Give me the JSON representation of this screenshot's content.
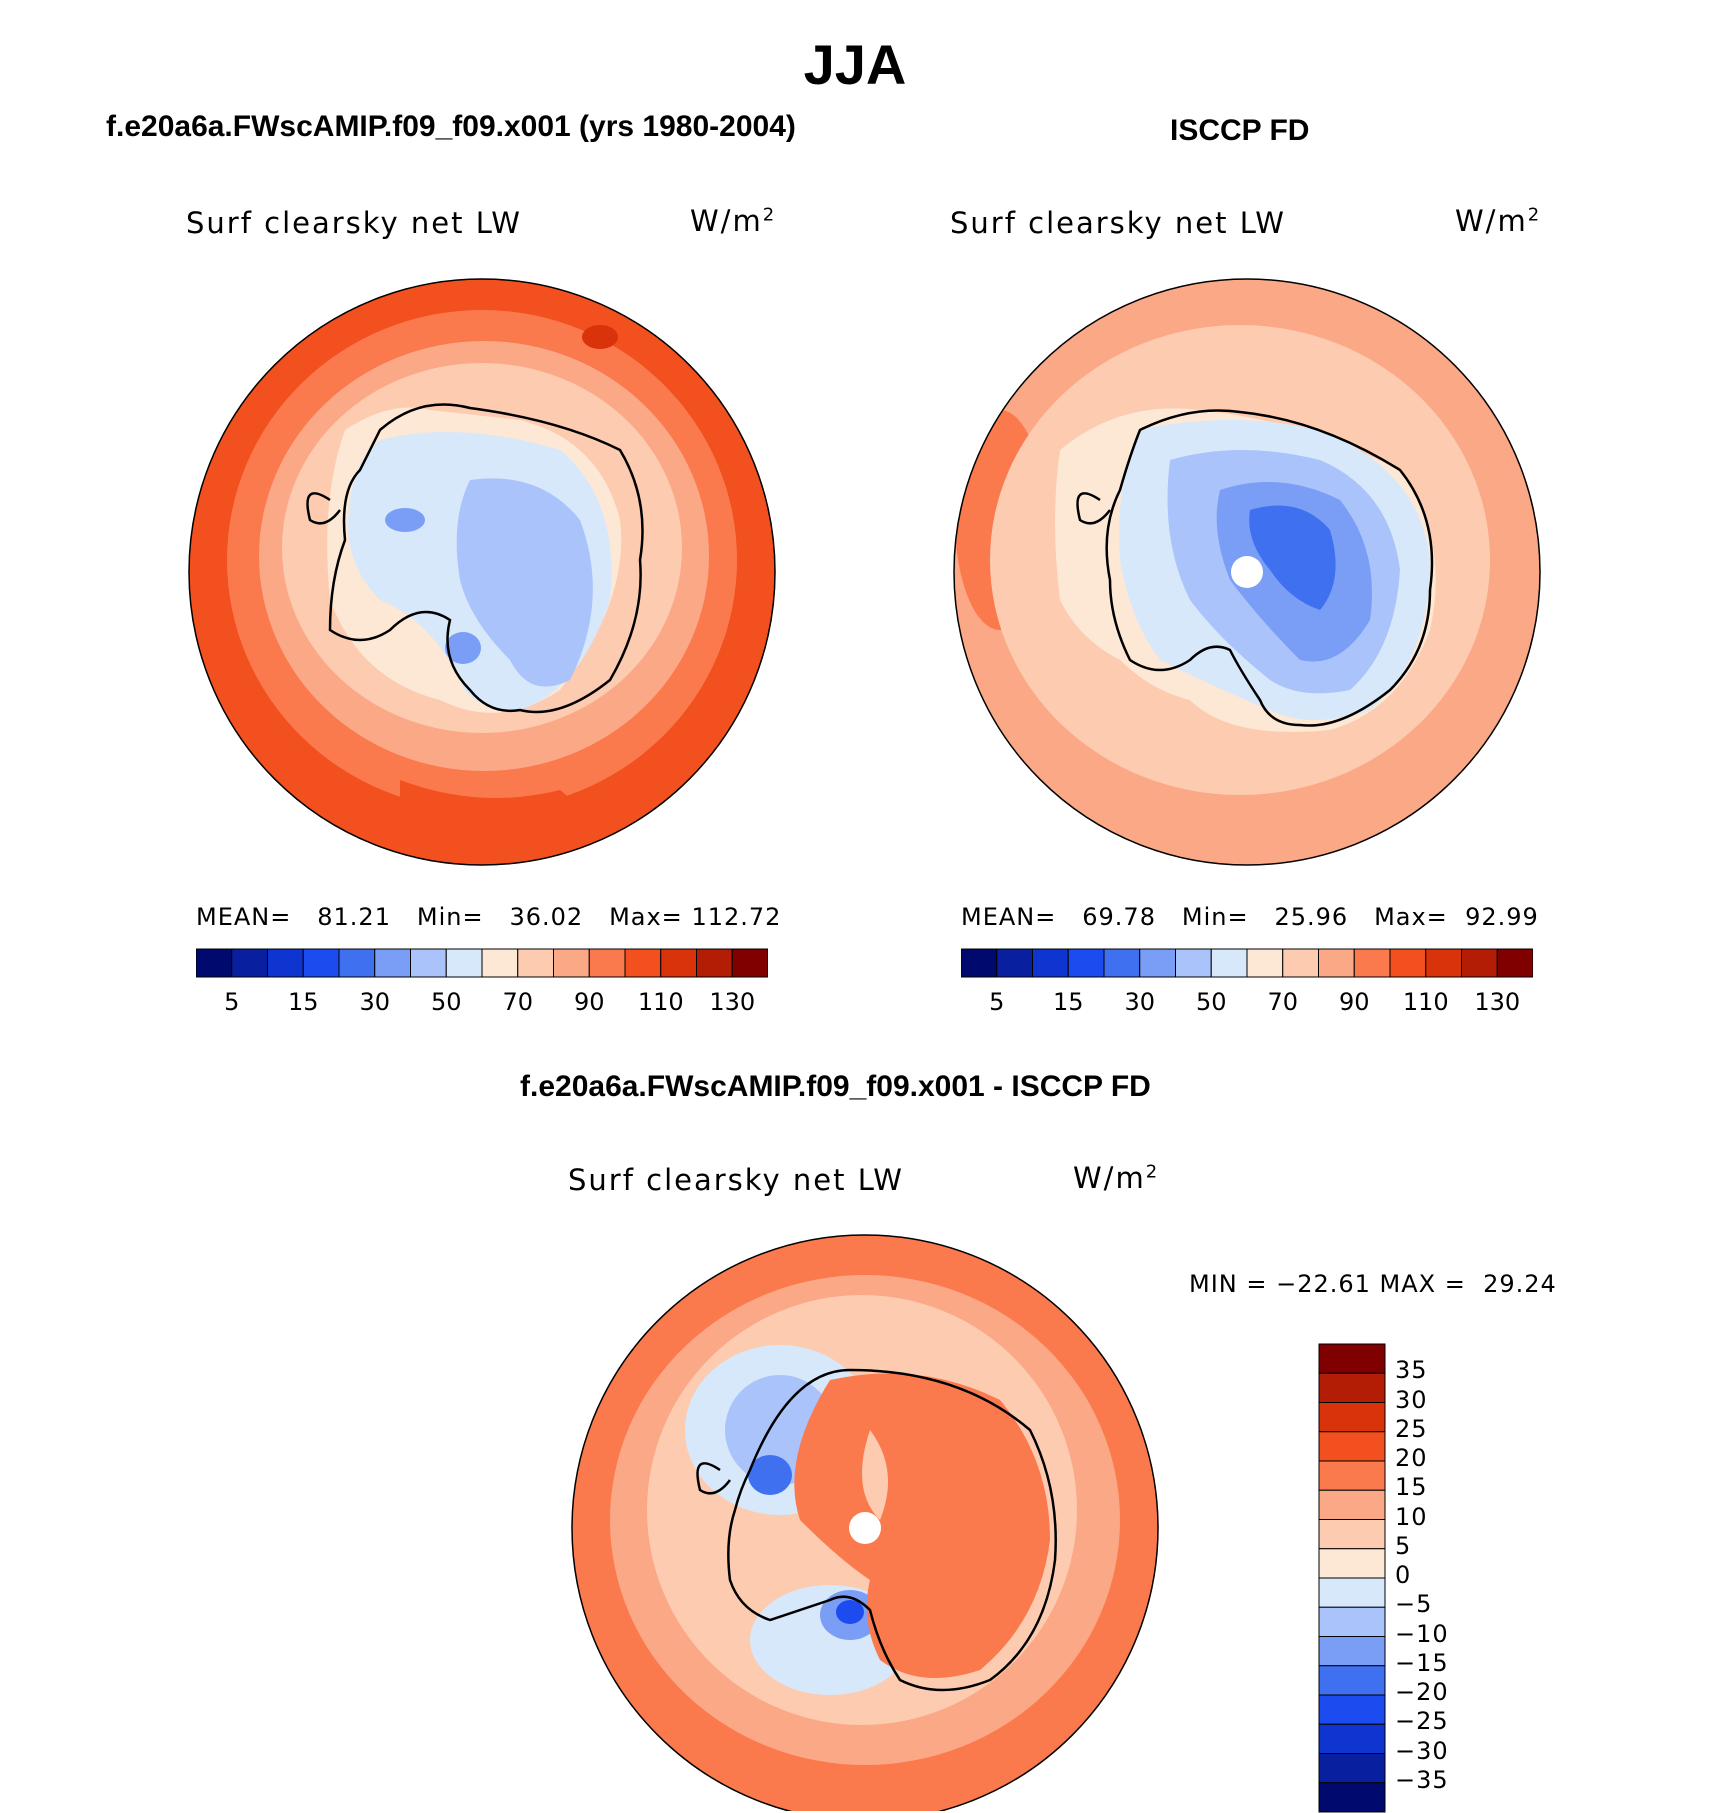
{
  "figure": {
    "season_title": "JJA",
    "panels": [
      {
        "heading": "f.e20a6a.FWscAMIP.f09_f09.x001 (yrs 1980-2004)",
        "variable": "Surf clearsky net LW",
        "units": "W/m",
        "units_exp": "2",
        "stats": {
          "mean_label": "MEAN=",
          "mean": "81.21",
          "min_label": "Min=",
          "min": "36.02",
          "max_label": "Max=",
          "max": "112.72"
        }
      },
      {
        "heading": "ISCCP FD",
        "variable": "Surf clearsky net LW",
        "units": "W/m",
        "units_exp": "2",
        "stats": {
          "mean_label": "MEAN=",
          "mean": "69.78",
          "min_label": "Min=",
          "min": "25.96",
          "max_label": "Max=",
          "max": "92.99"
        }
      },
      {
        "heading": "f.e20a6a.FWscAMIP.f09_f09.x001 - ISCCP FD",
        "variable": "Surf clearsky net LW",
        "units": "W/m",
        "units_exp": "2",
        "stats_line": "MIN = −22.61 MAX =  29.24"
      }
    ]
  },
  "chart_data": [
    {
      "type": "heatmap",
      "projection": "south polar stereographic",
      "title": "f.e20a6a.FWscAMIP.f09_f09.x001 (yrs 1980-2004)",
      "subtitle": "Surf clearsky net LW",
      "units": "W/m2",
      "stats": {
        "mean": 81.21,
        "min": 36.02,
        "max": 112.72
      },
      "colorbar": {
        "orientation": "horizontal",
        "levels": [
          5,
          10,
          15,
          20,
          30,
          40,
          50,
          60,
          70,
          80,
          90,
          100,
          110,
          120,
          130
        ],
        "tick_labels": [
          "5",
          "15",
          "30",
          "50",
          "70",
          "90",
          "110",
          "130"
        ],
        "colors": [
          "#000a6e",
          "#0820a0",
          "#0e35d0",
          "#1c4cf0",
          "#3f70f0",
          "#7a9ef5",
          "#aac3fa",
          "#d8e8fb",
          "#fde7d5",
          "#fccbb0",
          "#fba887",
          "#fa7a4e",
          "#f2501f",
          "#d9330c",
          "#b31d05",
          "#800000"
        ]
      }
    },
    {
      "type": "heatmap",
      "projection": "south polar stereographic",
      "title": "ISCCP FD",
      "subtitle": "Surf clearsky net LW",
      "units": "W/m2",
      "stats": {
        "mean": 69.78,
        "min": 25.96,
        "max": 92.99
      },
      "colorbar": {
        "orientation": "horizontal",
        "levels": [
          5,
          10,
          15,
          20,
          30,
          40,
          50,
          60,
          70,
          80,
          90,
          100,
          110,
          120,
          130
        ],
        "tick_labels": [
          "5",
          "15",
          "30",
          "50",
          "70",
          "90",
          "110",
          "130"
        ],
        "colors": [
          "#000a6e",
          "#0820a0",
          "#0e35d0",
          "#1c4cf0",
          "#3f70f0",
          "#7a9ef5",
          "#aac3fa",
          "#d8e8fb",
          "#fde7d5",
          "#fccbb0",
          "#fba887",
          "#fa7a4e",
          "#f2501f",
          "#d9330c",
          "#b31d05",
          "#800000"
        ]
      }
    },
    {
      "type": "heatmap",
      "projection": "south polar stereographic",
      "title": "f.e20a6a.FWscAMIP.f09_f09.x001 - ISCCP FD",
      "subtitle": "Surf clearsky net LW",
      "units": "W/m2",
      "stats": {
        "min": -22.61,
        "max": 29.24
      },
      "colorbar": {
        "orientation": "vertical",
        "levels": [
          -35,
          -30,
          -25,
          -20,
          -15,
          -10,
          -5,
          0,
          5,
          10,
          15,
          20,
          25,
          30,
          35
        ],
        "tick_labels": [
          "35",
          "30",
          "25",
          "20",
          "15",
          "10",
          "5",
          "0",
          "−5",
          "−10",
          "−15",
          "−20",
          "−25",
          "−30",
          "−35"
        ],
        "colors": [
          "#000a6e",
          "#0820a0",
          "#0e35d0",
          "#1c4cf0",
          "#3f70f0",
          "#7a9ef5",
          "#aac3fa",
          "#d8e8fb",
          "#fde7d5",
          "#fccbb0",
          "#fba887",
          "#fa7a4e",
          "#f2501f",
          "#d9330c",
          "#b31d05",
          "#800000"
        ]
      }
    }
  ]
}
